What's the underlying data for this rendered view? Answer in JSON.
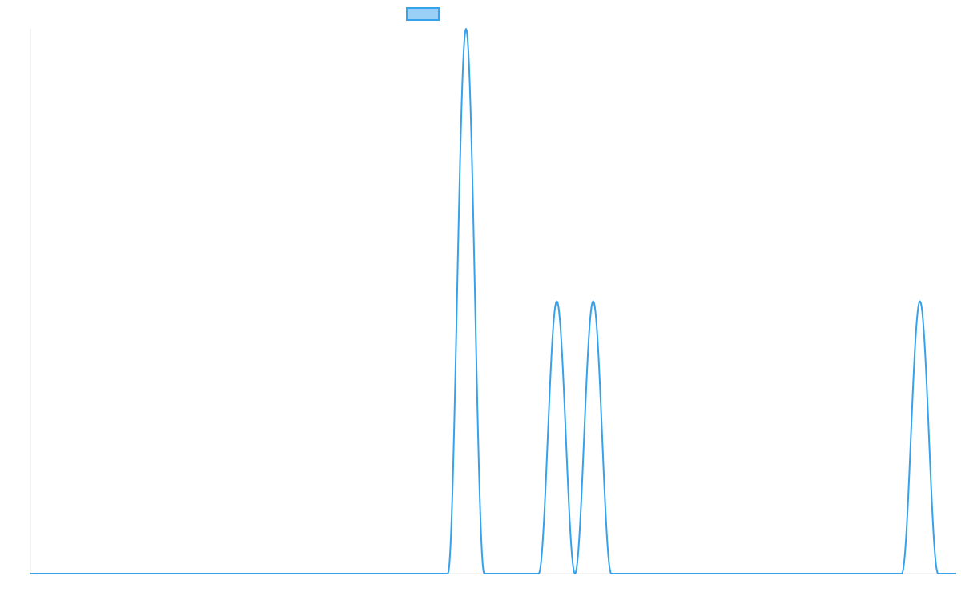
{
  "chart_data": {
    "type": "line",
    "title": "",
    "xlabel": "",
    "ylabel": "",
    "grid": false,
    "legend": {
      "placement": "top-center",
      "entries": [
        {
          "label": "",
          "color": "#36a2eb",
          "fill": "#9ad0f5"
        }
      ]
    },
    "xlim": [
      0,
      51
    ],
    "ylim": [
      0,
      2
    ],
    "series": [
      {
        "color": "#36a2eb",
        "x": [
          0,
          1,
          2,
          3,
          4,
          5,
          6,
          7,
          8,
          9,
          10,
          11,
          12,
          13,
          14,
          15,
          16,
          17,
          18,
          19,
          20,
          21,
          22,
          23,
          24,
          25,
          26,
          27,
          28,
          29,
          30,
          31,
          32,
          33,
          34,
          35,
          36,
          37,
          38,
          39,
          40,
          41,
          42,
          43,
          44,
          45,
          46,
          47,
          48,
          49,
          50,
          51
        ],
        "values": [
          0,
          0,
          0,
          0,
          0,
          0,
          0,
          0,
          0,
          0,
          0,
          0,
          0,
          0,
          0,
          0,
          0,
          0,
          0,
          0,
          0,
          0,
          0,
          0,
          2,
          0,
          0,
          0,
          0,
          1,
          0,
          1,
          0,
          0,
          0,
          0,
          0,
          0,
          0,
          0,
          0,
          0,
          0,
          0,
          0,
          0,
          0,
          0,
          0,
          1,
          0,
          0
        ]
      }
    ]
  }
}
